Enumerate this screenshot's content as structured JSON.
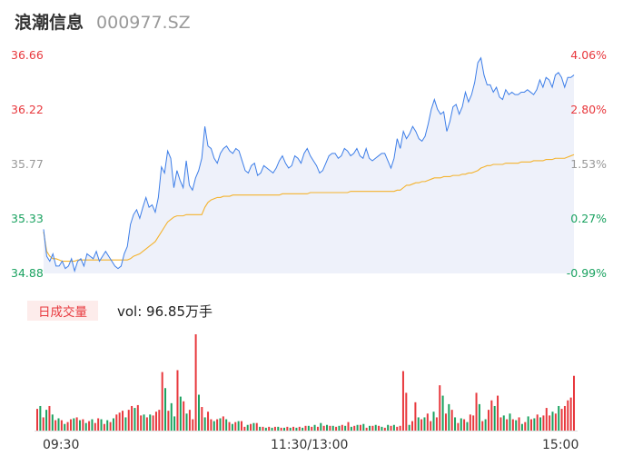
{
  "header": {
    "stock_name": "浪潮信息",
    "stock_code": "000977.SZ"
  },
  "price_axis": {
    "left_labels": [
      "36.66",
      "36.22",
      "35.77",
      "35.33",
      "34.88"
    ],
    "right_labels": [
      "4.06%",
      "2.80%",
      "1.53%",
      "0.27%",
      "-0.99%"
    ],
    "label_colors": [
      "#e8383d",
      "#e8383d",
      "#999999",
      "#1aa260",
      "#1aa260"
    ]
  },
  "volume": {
    "badge_label": "日成交量",
    "summary": "vol: 96.85万手"
  },
  "time_axis": {
    "labels": [
      "09:30",
      "11:30/13:00",
      "15:00"
    ]
  },
  "colors": {
    "price_line": "#3d7ee8",
    "price_fill": "#eef1fa",
    "avg_line": "#f4b32e",
    "up": "#e8383d",
    "down": "#1aa260"
  },
  "chart_data": {
    "type": "line",
    "ylim": [
      34.88,
      36.66
    ],
    "prev_close": 35.23,
    "x_labels": [
      "09:30",
      "11:30/13:00",
      "15:00"
    ],
    "series": [
      {
        "name": "price",
        "values": [
          35.24,
          35.02,
          34.98,
          35.04,
          34.94,
          34.94,
          34.98,
          34.92,
          34.94,
          35.0,
          34.9,
          34.98,
          35.0,
          34.94,
          35.04,
          35.02,
          35.0,
          35.06,
          34.98,
          35.02,
          35.06,
          35.02,
          34.98,
          34.94,
          34.92,
          34.94,
          35.04,
          35.1,
          35.28,
          35.36,
          35.4,
          35.33,
          35.42,
          35.5,
          35.42,
          35.44,
          35.38,
          35.5,
          35.75,
          35.7,
          35.88,
          35.82,
          35.58,
          35.72,
          35.64,
          35.58,
          35.8,
          35.6,
          35.56,
          35.66,
          35.72,
          35.82,
          36.08,
          35.92,
          35.9,
          35.82,
          35.78,
          35.86,
          35.9,
          35.92,
          35.88,
          35.86,
          35.9,
          35.88,
          35.8,
          35.72,
          35.7,
          35.76,
          35.78,
          35.68,
          35.7,
          35.76,
          35.74,
          35.72,
          35.7,
          35.74,
          35.8,
          35.84,
          35.78,
          35.74,
          35.76,
          35.84,
          35.82,
          35.78,
          35.86,
          35.9,
          35.84,
          35.8,
          35.76,
          35.7,
          35.72,
          35.78,
          35.84,
          35.86,
          35.86,
          35.82,
          35.84,
          35.9,
          35.88,
          35.84,
          35.86,
          35.9,
          35.84,
          35.82,
          35.9,
          35.82,
          35.8,
          35.82,
          35.84,
          35.86,
          35.86,
          35.8,
          35.74,
          35.82,
          35.98,
          35.9,
          36.04,
          35.98,
          36.02,
          36.08,
          36.04,
          35.98,
          35.96,
          36.0,
          36.1,
          36.22,
          36.3,
          36.22,
          36.18,
          36.2,
          36.04,
          36.12,
          36.24,
          36.26,
          36.18,
          36.24,
          36.36,
          36.28,
          36.34,
          36.44,
          36.6,
          36.64,
          36.5,
          36.42,
          36.42,
          36.36,
          36.4,
          36.32,
          36.3,
          36.38,
          36.34,
          36.36,
          36.34,
          36.34,
          36.36,
          36.36,
          36.38,
          36.36,
          36.34,
          36.38,
          36.46,
          36.4,
          36.48,
          36.46,
          36.4,
          36.5,
          36.52,
          36.48,
          36.4,
          36.48,
          36.48,
          36.5
        ]
      },
      {
        "name": "average",
        "values": [
          35.22,
          35.06,
          35.02,
          35.0,
          35.0,
          34.99,
          34.98,
          34.98,
          34.98,
          34.98,
          34.98,
          34.99,
          34.99,
          34.99,
          34.99,
          34.99,
          34.99,
          34.99,
          34.99,
          34.99,
          34.99,
          34.99,
          34.99,
          34.99,
          34.99,
          34.99,
          34.99,
          34.99,
          35.0,
          35.02,
          35.03,
          35.04,
          35.06,
          35.08,
          35.1,
          35.12,
          35.14,
          35.18,
          35.22,
          35.26,
          35.3,
          35.32,
          35.34,
          35.35,
          35.35,
          35.35,
          35.36,
          35.36,
          35.36,
          35.36,
          35.36,
          35.36,
          35.42,
          35.46,
          35.48,
          35.49,
          35.5,
          35.5,
          35.51,
          35.51,
          35.51,
          35.52,
          35.52,
          35.52,
          35.52,
          35.52,
          35.52,
          35.52,
          35.52,
          35.52,
          35.52,
          35.52,
          35.52,
          35.52,
          35.52,
          35.52,
          35.52,
          35.53,
          35.53,
          35.53,
          35.53,
          35.53,
          35.53,
          35.53,
          35.53,
          35.53,
          35.54,
          35.54,
          35.54,
          35.54,
          35.54,
          35.54,
          35.54,
          35.54,
          35.54,
          35.54,
          35.54,
          35.54,
          35.54,
          35.55,
          35.55,
          35.55,
          35.55,
          35.55,
          35.55,
          35.55,
          35.55,
          35.55,
          35.55,
          35.55,
          35.55,
          35.55,
          35.55,
          35.55,
          35.56,
          35.56,
          35.58,
          35.6,
          35.6,
          35.61,
          35.62,
          35.62,
          35.63,
          35.63,
          35.64,
          35.65,
          35.66,
          35.66,
          35.66,
          35.67,
          35.67,
          35.67,
          35.68,
          35.68,
          35.68,
          35.69,
          35.69,
          35.7,
          35.7,
          35.71,
          35.72,
          35.74,
          35.75,
          35.76,
          35.76,
          35.77,
          35.77,
          35.77,
          35.77,
          35.78,
          35.78,
          35.78,
          35.78,
          35.78,
          35.79,
          35.79,
          35.79,
          35.79,
          35.8,
          35.8,
          35.8,
          35.8,
          35.81,
          35.81,
          35.81,
          35.82,
          35.82,
          35.82,
          35.82,
          35.83,
          35.84,
          35.85
        ]
      }
    ],
    "volume_values": [
      23,
      26,
      14,
      22,
      26,
      17,
      11,
      13,
      11,
      7,
      9,
      12,
      13,
      14,
      11,
      12,
      8,
      10,
      12,
      8,
      13,
      12,
      7,
      11,
      9,
      13,
      17,
      19,
      21,
      14,
      22,
      26,
      24,
      27,
      16,
      17,
      14,
      17,
      16,
      20,
      22,
      62,
      45,
      21,
      29,
      15,
      64,
      36,
      31,
      18,
      22,
      12,
      102,
      38,
      25,
      14,
      20,
      12,
      10,
      12,
      13,
      15,
      12,
      9,
      7,
      9,
      10,
      10,
      4,
      6,
      7,
      8,
      8,
      4,
      4,
      3,
      4,
      3,
      4,
      4,
      3,
      3,
      4,
      3,
      4,
      3,
      4,
      3,
      5,
      5,
      4,
      6,
      4,
      8,
      5,
      6,
      5,
      5,
      4,
      5,
      6,
      5,
      9,
      4,
      5,
      6,
      6,
      7,
      3,
      5,
      5,
      6,
      5,
      4,
      3,
      6,
      5,
      6,
      4,
      5,
      63,
      40,
      6,
      10,
      30,
      14,
      12,
      14,
      18,
      10,
      20,
      14,
      48,
      37,
      18,
      28,
      22,
      14,
      8,
      13,
      12,
      9,
      17,
      16,
      40,
      28,
      10,
      12,
      22,
      32,
      26,
      37,
      14,
      16,
      12,
      18,
      12,
      11,
      14,
      7,
      9,
      15,
      12,
      13,
      17,
      14,
      16,
      24,
      16,
      20,
      18,
      26,
      23,
      26,
      32,
      35,
      58
    ],
    "volume_up": [
      true,
      false,
      true,
      false,
      true,
      false,
      true,
      false,
      true,
      false,
      true,
      true,
      false,
      true,
      false,
      true,
      false,
      true,
      false,
      true,
      true,
      false,
      true,
      false,
      true,
      false,
      true,
      true,
      true,
      false,
      true,
      true,
      false,
      true,
      true,
      false,
      true,
      false,
      true,
      true,
      true,
      true,
      false,
      true,
      false,
      false,
      true,
      false,
      true,
      false,
      true,
      true,
      true,
      false,
      true,
      false,
      true,
      true,
      false,
      true,
      false,
      true,
      false,
      true,
      false,
      true,
      false,
      true,
      true,
      false,
      true,
      false,
      true,
      false,
      true,
      false,
      true,
      false,
      true,
      false,
      true,
      false,
      true,
      false,
      true,
      false,
      true,
      false,
      true,
      false,
      true,
      false,
      true,
      false,
      true,
      false,
      true,
      false,
      true,
      false,
      true,
      false,
      true,
      false,
      true,
      false,
      true,
      false,
      true,
      false,
      true,
      false,
      true,
      false,
      true,
      false,
      true,
      false,
      true,
      true,
      true,
      true,
      false,
      true,
      true,
      false,
      true,
      false,
      true,
      true,
      false,
      true,
      true,
      false,
      true,
      false,
      true,
      false,
      true,
      false,
      true,
      false,
      true,
      true,
      true,
      false,
      true,
      false,
      true,
      true,
      false,
      true,
      true,
      false,
      true,
      false,
      true,
      false,
      true,
      false,
      true,
      false,
      true,
      false,
      true,
      false,
      true,
      true,
      true,
      false,
      true,
      false,
      true,
      true,
      true,
      true,
      true
    ]
  }
}
